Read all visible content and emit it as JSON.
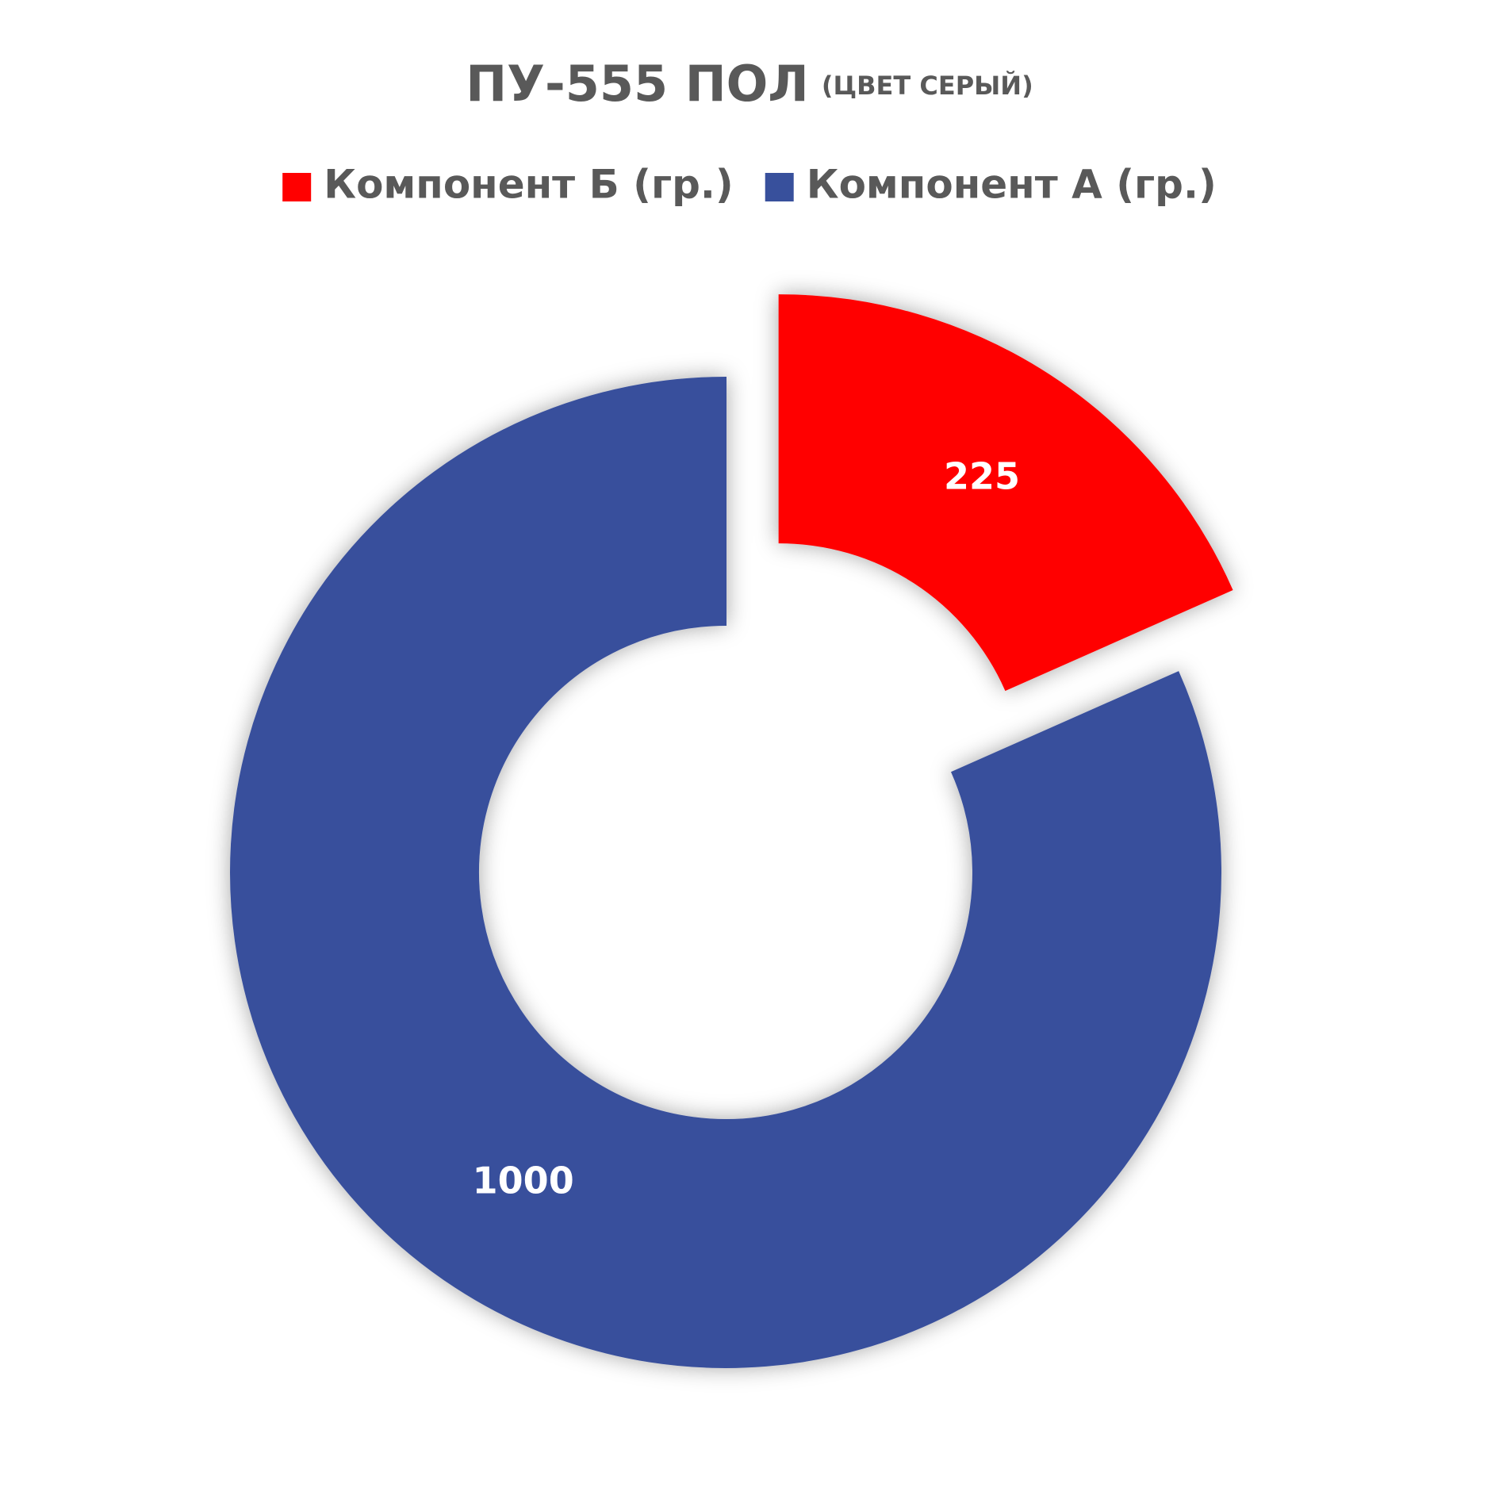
{
  "chart_data": {
    "type": "doughnut",
    "title": "ПУ-555 ПОЛ",
    "subtitle": "(ЦВЕТ СЕРЫЙ)",
    "categories": [
      "Компонент Б (гр.)",
      "Компонент А (гр.)"
    ],
    "values": [
      225,
      1000
    ],
    "colors": [
      "#ff0000",
      "#38509c"
    ],
    "legend": "top"
  }
}
